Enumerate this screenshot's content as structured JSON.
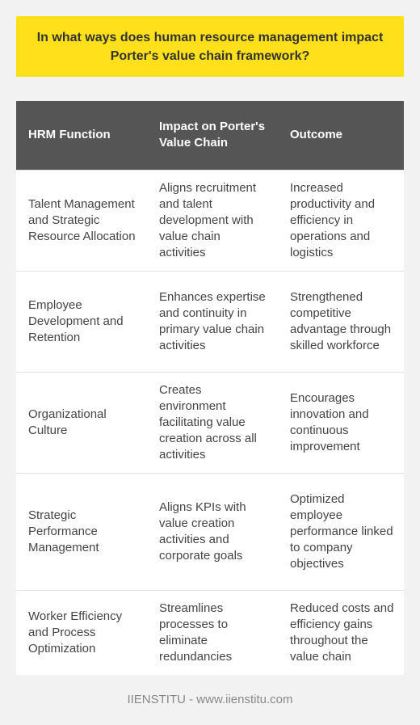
{
  "title": "In what ways does human resource management impact Porter's value chain framework?",
  "table": {
    "headers": [
      "HRM Function",
      "Impact on Porter's Value Chain",
      "Outcome"
    ],
    "rows": [
      [
        "Talent Management and Strategic Resource Allocation",
        "Aligns recruitment and talent development with value chain activities",
        "Increased productivity and efficiency in operations and logistics"
      ],
      [
        "Employee Development and Retention",
        "Enhances expertise and continuity in primary value chain activities",
        "Strengthened competitive advantage through skilled workforce"
      ],
      [
        "Organizational Culture",
        "Creates environment facilitating value creation across all activities",
        "Encourages innovation and continuous improvement"
      ],
      [
        "Strategic Performance Management",
        "Aligns KPIs with value creation activities and corporate goals",
        "Optimized employee performance linked to company objectives"
      ],
      [
        "Worker Efficiency and Process Optimization",
        "Streamlines processes to eliminate redundancies",
        "Reduced costs and efficiency gains throughout the value chain"
      ]
    ]
  },
  "footer": "IIENSTITU - www.iienstitu.com",
  "colors": {
    "title_background": "#ffe01b",
    "header_background": "#555555",
    "page_background": "#f2f2f2"
  }
}
